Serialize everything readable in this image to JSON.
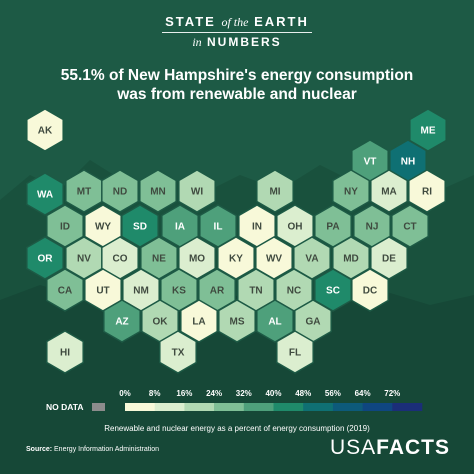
{
  "brand": {
    "line1_a": "STATE",
    "line1_of": "of the",
    "line1_b": "EARTH",
    "line2_in": "in",
    "line2_b": "NUMBERS"
  },
  "headline": {
    "line1": "55.1% of New Hampshire's energy consumption",
    "line2": "was from renewable and nuclear"
  },
  "legend": {
    "ticks": [
      "0%",
      "8%",
      "16%",
      "24%",
      "32%",
      "40%",
      "48%",
      "56%",
      "64%",
      "72%"
    ],
    "colors": [
      "#f8f9d9",
      "#dbeecf",
      "#b1d9b3",
      "#7fbf96",
      "#4ea07b",
      "#1f8a6a",
      "#0f7073",
      "#0d5a7a",
      "#0f4680",
      "#1b2e78"
    ],
    "no_data_label": "NO DATA",
    "no_data_color": "#8c8c8c",
    "caption": "Renewable and nuclear energy as a percent of energy consumption (2019)"
  },
  "source": {
    "label": "Source:",
    "text": "Energy Information Administration"
  },
  "logo": {
    "part1": "USA",
    "part2": "FACTS"
  },
  "chart_data": {
    "type": "heatmap",
    "title": "55.1% of New Hampshire's energy consumption was from renewable and nuclear",
    "caption": "Renewable and nuclear energy as a percent of energy consumption (2019)",
    "scale_breaks": [
      0,
      8,
      16,
      24,
      32,
      40,
      48,
      56,
      64,
      72
    ],
    "scale_unit": "%",
    "states": [
      {
        "abbr": "AK",
        "bin": 0
      },
      {
        "abbr": "ME",
        "bin": 5
      },
      {
        "abbr": "VT",
        "bin": 4
      },
      {
        "abbr": "NH",
        "bin": 6
      },
      {
        "abbr": "WA",
        "bin": 5
      },
      {
        "abbr": "MT",
        "bin": 3
      },
      {
        "abbr": "ND",
        "bin": 3
      },
      {
        "abbr": "MN",
        "bin": 3
      },
      {
        "abbr": "WI",
        "bin": 2
      },
      {
        "abbr": "MI",
        "bin": 2
      },
      {
        "abbr": "NY",
        "bin": 3
      },
      {
        "abbr": "MA",
        "bin": 1
      },
      {
        "abbr": "RI",
        "bin": 0
      },
      {
        "abbr": "ID",
        "bin": 3
      },
      {
        "abbr": "WY",
        "bin": 0
      },
      {
        "abbr": "SD",
        "bin": 5
      },
      {
        "abbr": "IA",
        "bin": 4
      },
      {
        "abbr": "IL",
        "bin": 4
      },
      {
        "abbr": "IN",
        "bin": 0
      },
      {
        "abbr": "OH",
        "bin": 1
      },
      {
        "abbr": "PA",
        "bin": 3
      },
      {
        "abbr": "NJ",
        "bin": 3
      },
      {
        "abbr": "CT",
        "bin": 3
      },
      {
        "abbr": "OR",
        "bin": 5
      },
      {
        "abbr": "NV",
        "bin": 2
      },
      {
        "abbr": "CO",
        "bin": 1
      },
      {
        "abbr": "NE",
        "bin": 3
      },
      {
        "abbr": "MO",
        "bin": 1
      },
      {
        "abbr": "KY",
        "bin": 0
      },
      {
        "abbr": "WV",
        "bin": 0
      },
      {
        "abbr": "VA",
        "bin": 2
      },
      {
        "abbr": "MD",
        "bin": 2
      },
      {
        "abbr": "DE",
        "bin": 1
      },
      {
        "abbr": "CA",
        "bin": 3
      },
      {
        "abbr": "UT",
        "bin": 0
      },
      {
        "abbr": "NM",
        "bin": 1
      },
      {
        "abbr": "KS",
        "bin": 3
      },
      {
        "abbr": "AR",
        "bin": 3
      },
      {
        "abbr": "TN",
        "bin": 2
      },
      {
        "abbr": "NC",
        "bin": 2
      },
      {
        "abbr": "SC",
        "bin": 5
      },
      {
        "abbr": "DC",
        "bin": 0
      },
      {
        "abbr": "AZ",
        "bin": 4
      },
      {
        "abbr": "OK",
        "bin": 2
      },
      {
        "abbr": "LA",
        "bin": 0
      },
      {
        "abbr": "MS",
        "bin": 2
      },
      {
        "abbr": "AL",
        "bin": 4
      },
      {
        "abbr": "GA",
        "bin": 2
      },
      {
        "abbr": "HI",
        "bin": 1
      },
      {
        "abbr": "TX",
        "bin": 1
      },
      {
        "abbr": "FL",
        "bin": 1
      }
    ]
  }
}
